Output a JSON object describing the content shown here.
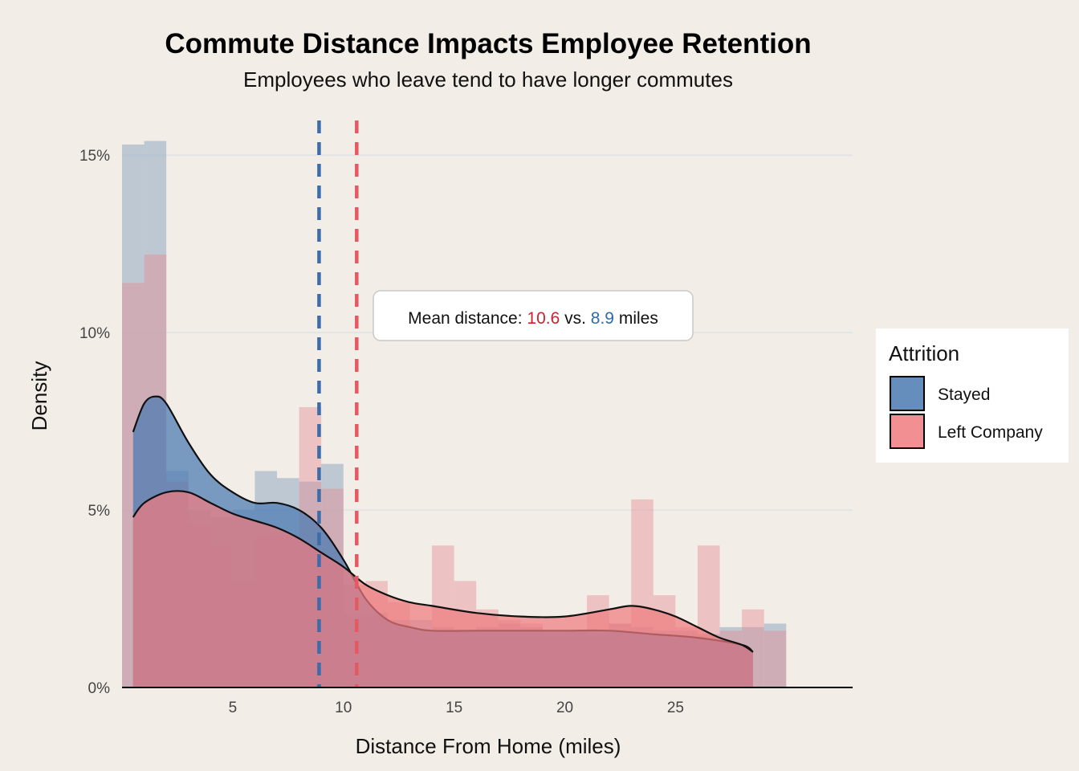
{
  "chart_data": {
    "type": "histogram-density",
    "title": "Commute Distance Impacts Employee Retention",
    "subtitle": "Employees who leave tend to have longer commutes",
    "xlabel": "Distance From Home (miles)",
    "ylabel": "Density",
    "xlim": [
      0,
      33
    ],
    "ylim": [
      0,
      16
    ],
    "x_ticks": [
      5,
      10,
      15,
      20,
      25
    ],
    "x_tick_labels": [
      "5",
      "10",
      "15",
      "20",
      "25"
    ],
    "y_ticks": [
      0,
      5,
      10,
      15
    ],
    "y_tick_labels": [
      "0%",
      "5%",
      "10%",
      "15%"
    ],
    "grid": "horizontal",
    "legend": {
      "title": "Attrition",
      "position": "right",
      "entries": [
        "Stayed",
        "Left Company"
      ]
    },
    "annotation": {
      "prefix": "Mean distance: ",
      "left_mean": "10.6",
      "middle": " vs. ",
      "stayed_mean": "8.9",
      "suffix": " miles"
    },
    "colors": {
      "stayed": "#4a7ab2",
      "left": "#ee7b80",
      "stayed_text": "#2e6aa8",
      "left_text": "#d0202e",
      "stayed_line": "#3d6da8",
      "left_line": "#e45a62"
    },
    "mean_lines": {
      "stayed": 8.9,
      "left": 10.6
    },
    "series": [
      {
        "name": "Stayed",
        "bin_width": 1,
        "bins": [
          {
            "x0": 0,
            "x1": 1,
            "y": 15.3
          },
          {
            "x0": 1,
            "x1": 2,
            "y": 15.4
          },
          {
            "x0": 2,
            "x1": 3,
            "y": 6.1
          },
          {
            "x0": 3,
            "x1": 4,
            "y": 5.0
          },
          {
            "x0": 4,
            "x1": 5,
            "y": 4.8
          },
          {
            "x0": 5,
            "x1": 6,
            "y": 5.0
          },
          {
            "x0": 6,
            "x1": 7,
            "y": 6.1
          },
          {
            "x0": 7,
            "x1": 8,
            "y": 5.9
          },
          {
            "x0": 8,
            "x1": 9,
            "y": 5.8
          },
          {
            "x0": 9,
            "x1": 10,
            "y": 6.3
          },
          {
            "x0": 10,
            "x1": 11,
            "y": 2.1
          },
          {
            "x0": 11,
            "x1": 12,
            "y": 2.1
          },
          {
            "x0": 12,
            "x1": 13,
            "y": 1.9
          },
          {
            "x0": 13,
            "x1": 14,
            "y": 1.9
          },
          {
            "x0": 14,
            "x1": 15,
            "y": 1.7
          },
          {
            "x0": 15,
            "x1": 16,
            "y": 1.6
          },
          {
            "x0": 16,
            "x1": 17,
            "y": 1.7
          },
          {
            "x0": 17,
            "x1": 18,
            "y": 1.8
          },
          {
            "x0": 18,
            "x1": 19,
            "y": 1.7
          },
          {
            "x0": 19,
            "x1": 20,
            "y": 1.5
          },
          {
            "x0": 20,
            "x1": 21,
            "y": 1.6
          },
          {
            "x0": 21,
            "x1": 22,
            "y": 1.5
          },
          {
            "x0": 22,
            "x1": 23,
            "y": 1.8
          },
          {
            "x0": 23,
            "x1": 24,
            "y": 1.7
          },
          {
            "x0": 24,
            "x1": 25,
            "y": 1.6
          },
          {
            "x0": 25,
            "x1": 26,
            "y": 1.6
          },
          {
            "x0": 26,
            "x1": 27,
            "y": 1.5
          },
          {
            "x0": 27,
            "x1": 28,
            "y": 1.7
          },
          {
            "x0": 28,
            "x1": 29,
            "y": 1.7
          },
          {
            "x0": 29,
            "x1": 30,
            "y": 1.8
          }
        ],
        "density": [
          [
            0.5,
            7.2
          ],
          [
            1,
            8.0
          ],
          [
            1.5,
            8.2
          ],
          [
            2,
            8.0
          ],
          [
            3,
            6.9
          ],
          [
            4,
            6.0
          ],
          [
            5,
            5.5
          ],
          [
            6,
            5.2
          ],
          [
            7,
            5.2
          ],
          [
            8,
            5.0
          ],
          [
            9,
            4.5
          ],
          [
            10,
            3.6
          ],
          [
            11,
            2.5
          ],
          [
            12,
            1.9
          ],
          [
            13,
            1.7
          ],
          [
            14,
            1.6
          ],
          [
            16,
            1.6
          ],
          [
            18,
            1.6
          ],
          [
            20,
            1.6
          ],
          [
            22,
            1.6
          ],
          [
            24,
            1.5
          ],
          [
            26,
            1.4
          ],
          [
            28,
            1.2
          ],
          [
            28.5,
            1.0
          ]
        ]
      },
      {
        "name": "Left Company",
        "bin_width": 1,
        "bins": [
          {
            "x0": 0,
            "x1": 1,
            "y": 11.4
          },
          {
            "x0": 1,
            "x1": 2,
            "y": 12.2
          },
          {
            "x0": 2,
            "x1": 3,
            "y": 5.8
          },
          {
            "x0": 3,
            "x1": 4,
            "y": 4.6
          },
          {
            "x0": 4,
            "x1": 5,
            "y": 4.0
          },
          {
            "x0": 5,
            "x1": 6,
            "y": 3.0
          },
          {
            "x0": 6,
            "x1": 7,
            "y": 4.3
          },
          {
            "x0": 7,
            "x1": 8,
            "y": 4.3
          },
          {
            "x0": 8,
            "x1": 9,
            "y": 7.9
          },
          {
            "x0": 9,
            "x1": 10,
            "y": 5.6
          },
          {
            "x0": 10,
            "x1": 11,
            "y": 2.9
          },
          {
            "x0": 11,
            "x1": 12,
            "y": 3.0
          },
          {
            "x0": 12,
            "x1": 13,
            "y": 2.4
          },
          {
            "x0": 13,
            "x1": 14,
            "y": 1.6
          },
          {
            "x0": 14,
            "x1": 15,
            "y": 4.0
          },
          {
            "x0": 15,
            "x1": 16,
            "y": 3.0
          },
          {
            "x0": 16,
            "x1": 17,
            "y": 2.2
          },
          {
            "x0": 17,
            "x1": 18,
            "y": 1.9
          },
          {
            "x0": 18,
            "x1": 19,
            "y": 1.8
          },
          {
            "x0": 19,
            "x1": 20,
            "y": 1.6
          },
          {
            "x0": 20,
            "x1": 21,
            "y": 1.6
          },
          {
            "x0": 21,
            "x1": 22,
            "y": 2.6
          },
          {
            "x0": 22,
            "x1": 23,
            "y": 1.8
          },
          {
            "x0": 23,
            "x1": 24,
            "y": 5.3
          },
          {
            "x0": 24,
            "x1": 25,
            "y": 2.6
          },
          {
            "x0": 25,
            "x1": 26,
            "y": 1.7
          },
          {
            "x0": 26,
            "x1": 27,
            "y": 4.0
          },
          {
            "x0": 27,
            "x1": 28,
            "y": 1.6
          },
          {
            "x0": 28,
            "x1": 29,
            "y": 2.2
          },
          {
            "x0": 29,
            "x1": 30,
            "y": 1.6
          }
        ],
        "density": [
          [
            0.5,
            4.8
          ],
          [
            1,
            5.2
          ],
          [
            2,
            5.5
          ],
          [
            3,
            5.5
          ],
          [
            4,
            5.2
          ],
          [
            5,
            4.9
          ],
          [
            6,
            4.7
          ],
          [
            7,
            4.5
          ],
          [
            8,
            4.2
          ],
          [
            9,
            3.8
          ],
          [
            10,
            3.4
          ],
          [
            11,
            2.9
          ],
          [
            12,
            2.6
          ],
          [
            13,
            2.4
          ],
          [
            14,
            2.3
          ],
          [
            16,
            2.1
          ],
          [
            18,
            2.0
          ],
          [
            20,
            2.0
          ],
          [
            22,
            2.2
          ],
          [
            23,
            2.3
          ],
          [
            24,
            2.2
          ],
          [
            25,
            2.0
          ],
          [
            26,
            1.7
          ],
          [
            27,
            1.4
          ],
          [
            28,
            1.2
          ],
          [
            28.5,
            1.0
          ]
        ]
      }
    ]
  }
}
